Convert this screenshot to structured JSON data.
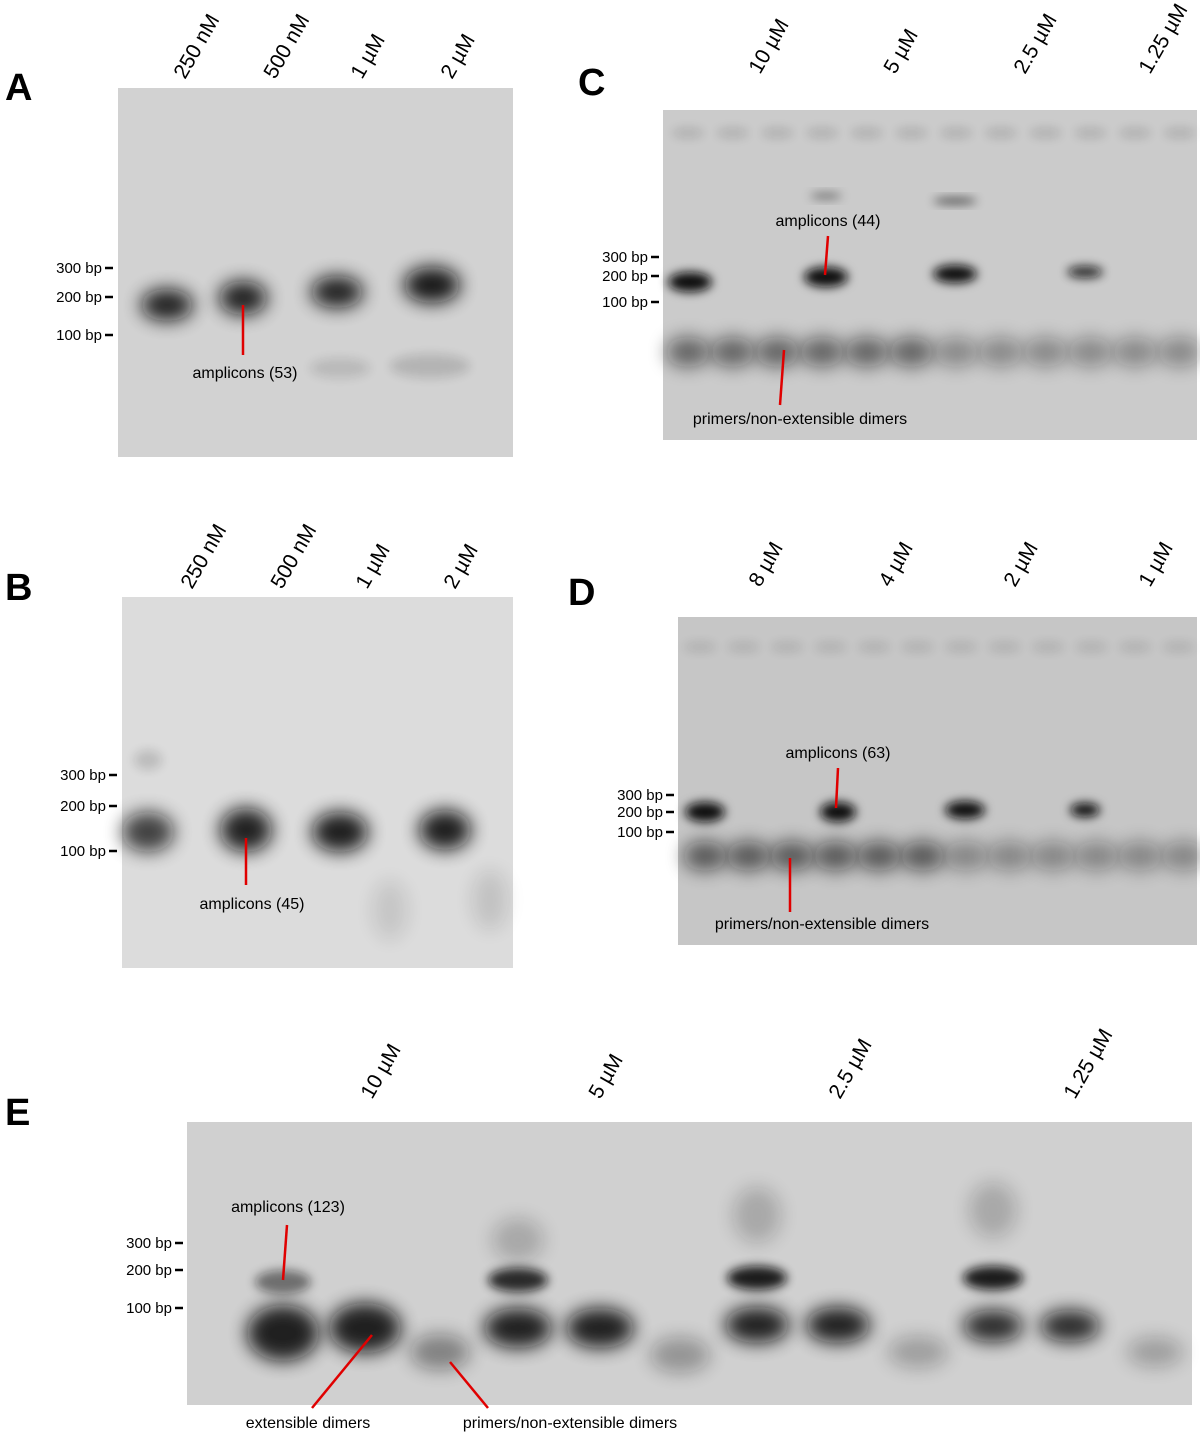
{
  "panels": [
    {
      "label": "A",
      "lanes": [
        "250 nM",
        "500 nM",
        "1 µM",
        "2 µM"
      ],
      "markers": [
        "300 bp",
        "200 bp",
        "100 bp"
      ],
      "annotations": [
        "amplicons (53)"
      ]
    },
    {
      "label": "B",
      "lanes": [
        "250 nM",
        "500 nM",
        "1 µM",
        "2 µM"
      ],
      "markers": [
        "300 bp",
        "200 bp",
        "100 bp"
      ],
      "annotations": [
        "amplicons (45)"
      ]
    },
    {
      "label": "C",
      "lanes": [
        "10 µM",
        "5 µM",
        "2.5 µM",
        "1.25 µM"
      ],
      "markers": [
        "300 bp",
        "200 bp",
        "100 bp"
      ],
      "annotations": [
        "amplicons (44)",
        "primers/non-extensible dimers"
      ]
    },
    {
      "label": "D",
      "lanes": [
        "8 µM",
        "4 µM",
        "2 µM",
        "1 µM"
      ],
      "markers": [
        "300 bp",
        "200 bp",
        "100 bp"
      ],
      "annotations": [
        "amplicons (63)",
        "primers/non-extensible dimers"
      ]
    },
    {
      "label": "E",
      "lanes": [
        "10 µM",
        "5 µM",
        "2.5 µM",
        "1.25 µM"
      ],
      "markers": [
        "300 bp",
        "200 bp",
        "100 bp"
      ],
      "annotations": [
        "amplicons (123)",
        "extensible dimers",
        "primers/non-extensible dimers"
      ]
    }
  ]
}
